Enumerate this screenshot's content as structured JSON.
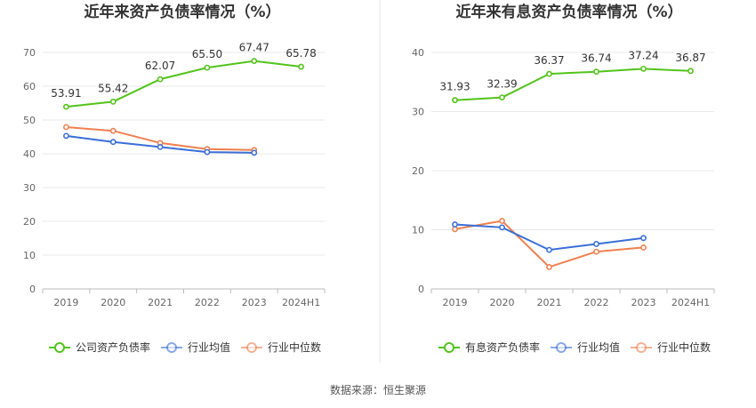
{
  "source": "数据来源：恒生聚源",
  "chart_data": [
    {
      "type": "line",
      "title": "近年来资产负债率情况（%）",
      "categories": [
        "2019",
        "2020",
        "2021",
        "2022",
        "2023",
        "2024H1"
      ],
      "ylim": [
        0,
        70
      ],
      "yticks": [
        0,
        10,
        20,
        30,
        40,
        50,
        60,
        70
      ],
      "grid": true,
      "legend_position": "bottom",
      "series": [
        {
          "name": "公司资产负债率",
          "color": "#52c41a",
          "values": [
            53.91,
            55.42,
            62.07,
            65.5,
            67.47,
            65.78
          ],
          "labels": [
            "53.91",
            "55.42",
            "62.07",
            "65.50",
            "67.47",
            "65.78"
          ]
        },
        {
          "name": "行业均值",
          "color": "#3a6fd8",
          "values": [
            45.3,
            43.5,
            42.0,
            40.5,
            40.3,
            null
          ]
        },
        {
          "name": "行业中位数",
          "color": "#f08050",
          "values": [
            47.9,
            46.8,
            43.2,
            41.4,
            41.1,
            null
          ]
        }
      ]
    },
    {
      "type": "line",
      "title": "近年来有息资产负债率情况（%）",
      "categories": [
        "2019",
        "2020",
        "2021",
        "2022",
        "2023",
        "2024H1"
      ],
      "ylim": [
        0,
        40
      ],
      "yticks": [
        0,
        10,
        20,
        30,
        40
      ],
      "grid": true,
      "legend_position": "bottom",
      "series": [
        {
          "name": "有息资产负债率",
          "color": "#52c41a",
          "values": [
            31.93,
            32.39,
            36.37,
            36.74,
            37.24,
            36.87
          ],
          "labels": [
            "31.93",
            "32.39",
            "36.37",
            "36.74",
            "37.24",
            "36.87"
          ]
        },
        {
          "name": "行业均值",
          "color": "#3a6fd8",
          "values": [
            10.9,
            10.4,
            6.6,
            7.6,
            8.6,
            null
          ]
        },
        {
          "name": "行业中位数",
          "color": "#f08050",
          "values": [
            10.1,
            11.5,
            3.7,
            6.3,
            7.0,
            null
          ]
        }
      ]
    }
  ]
}
